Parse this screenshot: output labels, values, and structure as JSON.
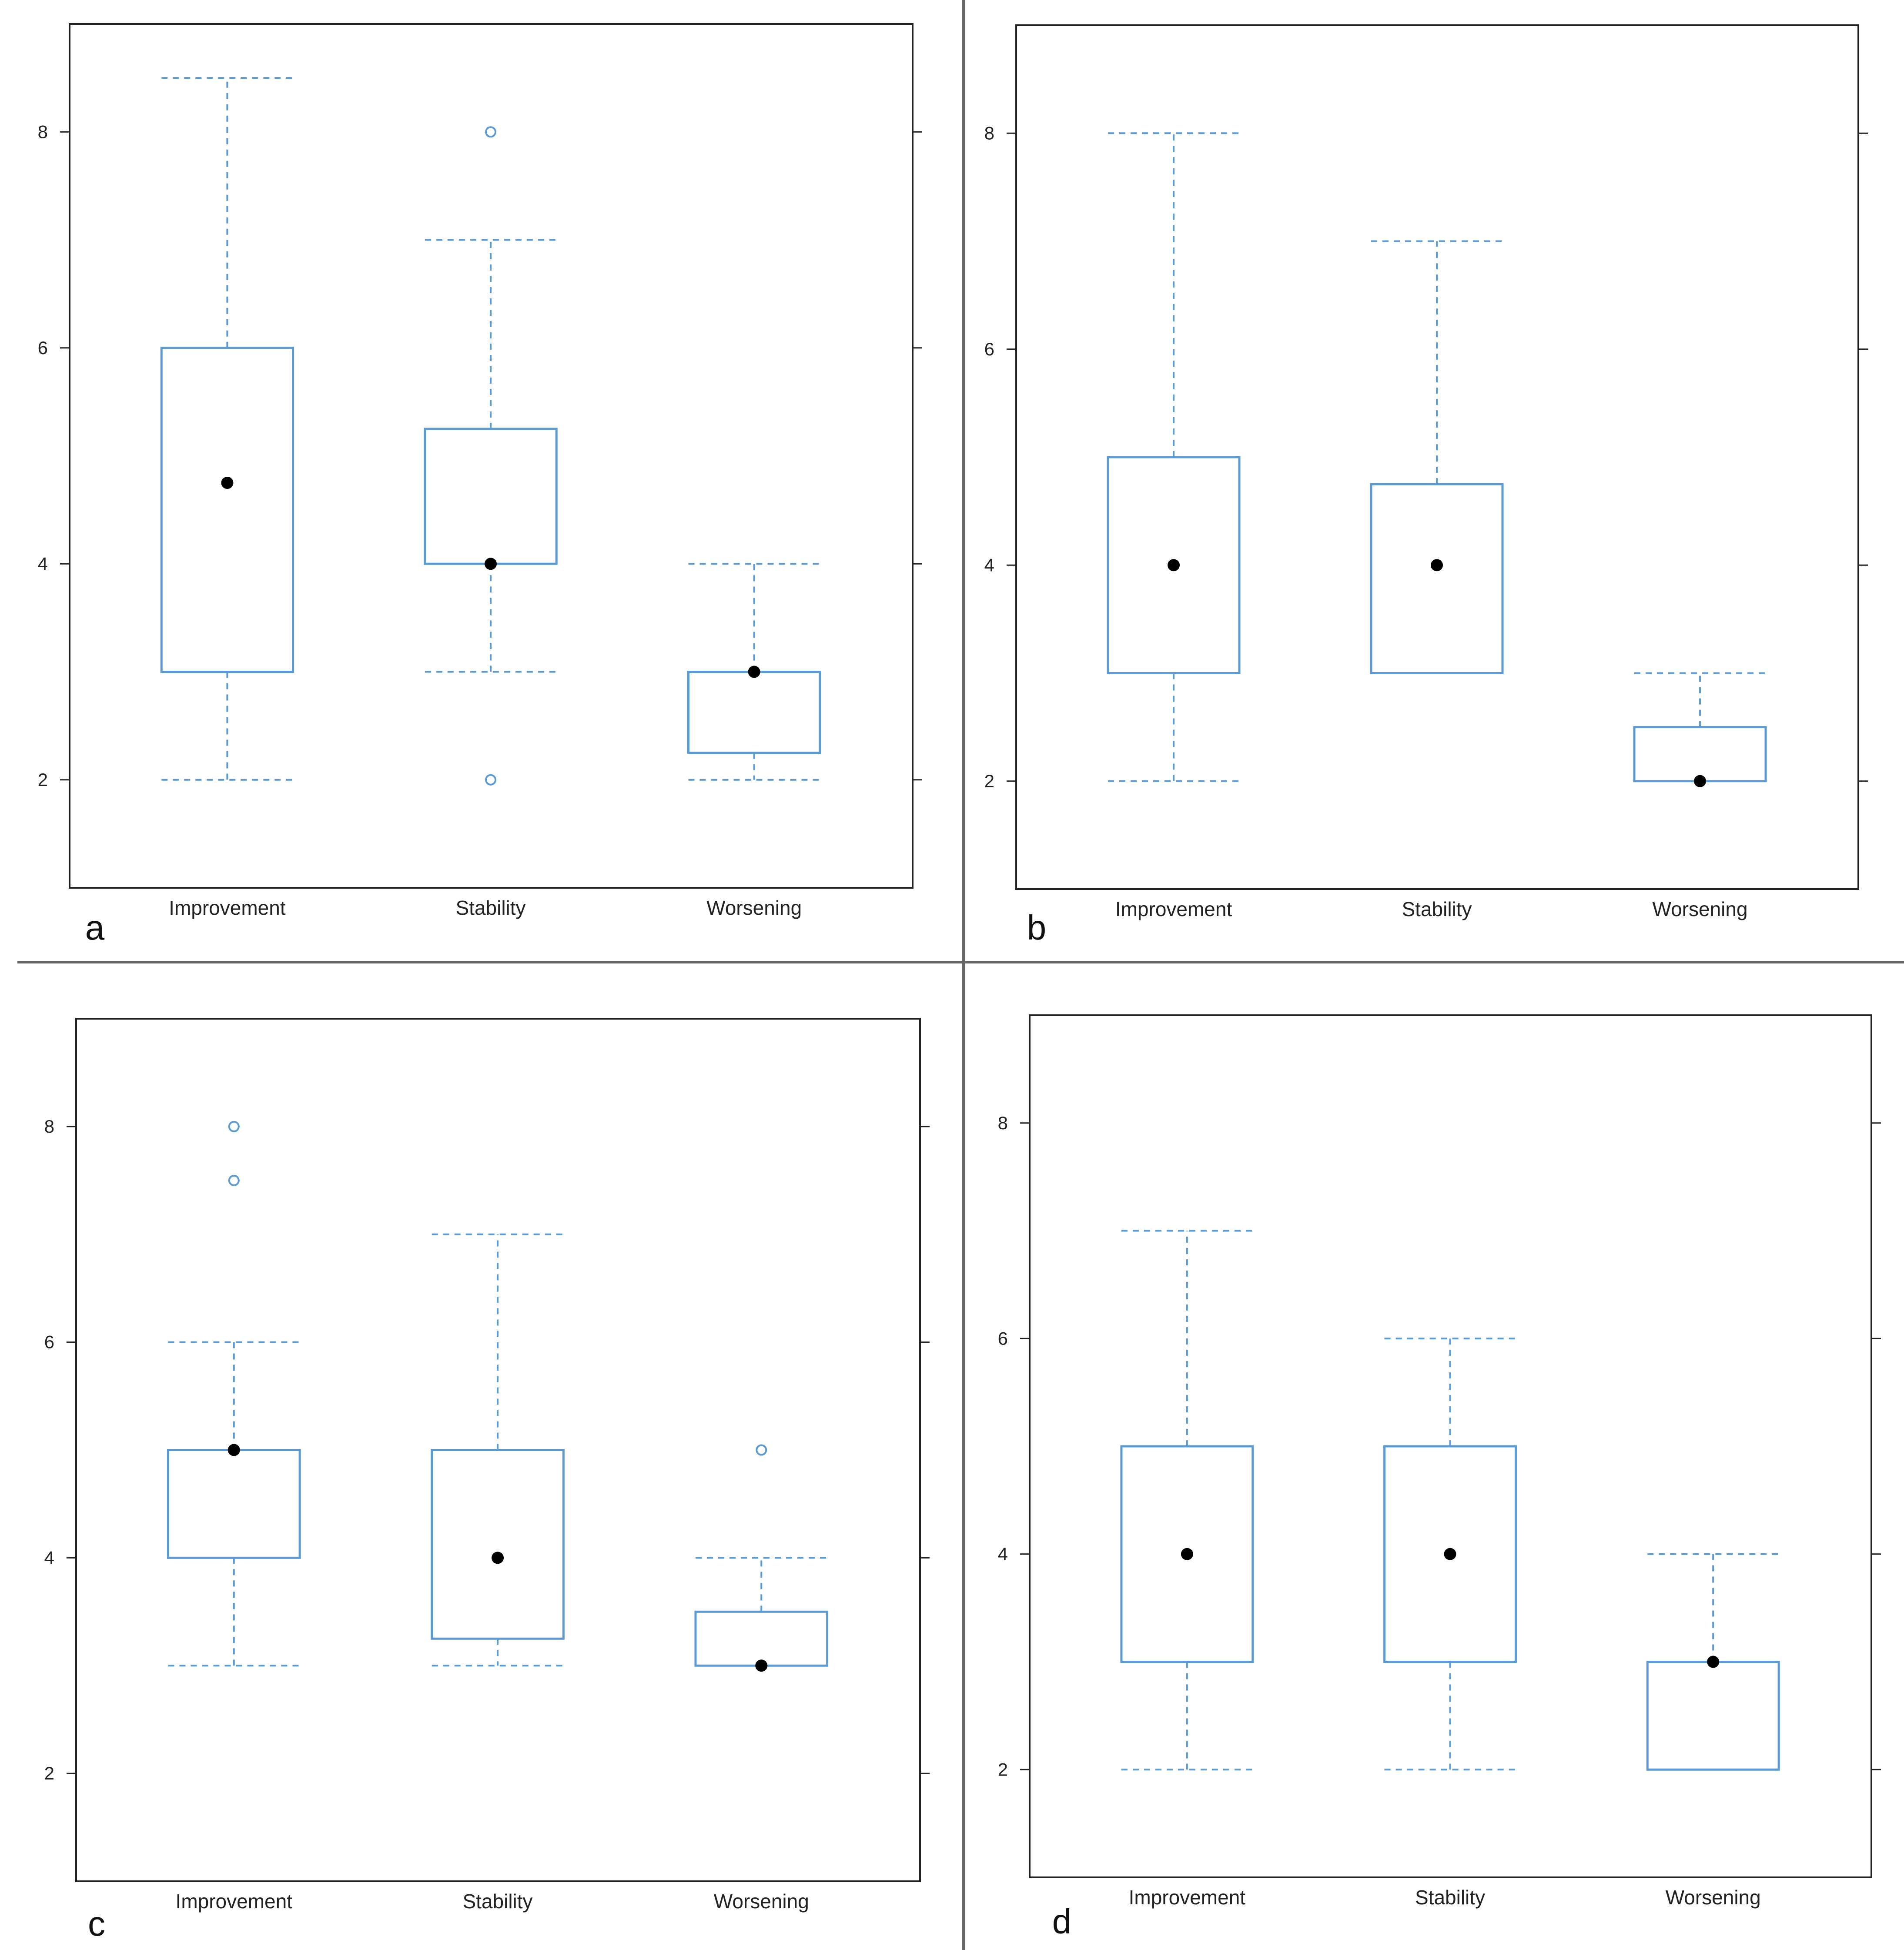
{
  "chart_data": [
    {
      "type": "box",
      "panel_label": "a",
      "categories": [
        "Improvement",
        "Stability",
        "Worsening"
      ],
      "ylim": [
        1,
        9
      ],
      "yticks": [
        2,
        4,
        6,
        8
      ],
      "boxes": [
        {
          "whisker_low": 2,
          "q1": 3,
          "median": 4.75,
          "q3": 6,
          "whisker_high": 8.5,
          "outliers": []
        },
        {
          "whisker_low": 3,
          "q1": 4,
          "median": 4,
          "q3": 5.25,
          "whisker_high": 7,
          "outliers": [
            2,
            8
          ]
        },
        {
          "whisker_low": 2,
          "q1": 2.25,
          "median": 3,
          "q3": 3,
          "whisker_high": 4,
          "outliers": []
        }
      ]
    },
    {
      "type": "box",
      "panel_label": "b",
      "categories": [
        "Improvement",
        "Stability",
        "Worsening"
      ],
      "ylim": [
        1,
        9
      ],
      "yticks": [
        2,
        4,
        6,
        8
      ],
      "boxes": [
        {
          "whisker_low": 2,
          "q1": 3,
          "median": 4,
          "q3": 5,
          "whisker_high": 8,
          "outliers": []
        },
        {
          "whisker_low": 3,
          "q1": 3,
          "median": 4,
          "q3": 4.75,
          "whisker_high": 7,
          "outliers": []
        },
        {
          "whisker_low": 2,
          "q1": 2,
          "median": 2,
          "q3": 2.5,
          "whisker_high": 3,
          "outliers": []
        }
      ]
    },
    {
      "type": "box",
      "panel_label": "c",
      "categories": [
        "Improvement",
        "Stability",
        "Worsening"
      ],
      "ylim": [
        1,
        9
      ],
      "yticks": [
        2,
        4,
        6,
        8
      ],
      "boxes": [
        {
          "whisker_low": 3,
          "q1": 4,
          "median": 5,
          "q3": 5,
          "whisker_high": 6,
          "outliers": [
            7.5,
            8
          ]
        },
        {
          "whisker_low": 3,
          "q1": 3.25,
          "median": 4,
          "q3": 5,
          "whisker_high": 7,
          "outliers": []
        },
        {
          "whisker_low": 3,
          "q1": 3,
          "median": 3,
          "q3": 3.5,
          "whisker_high": 4,
          "outliers": [
            5
          ]
        }
      ]
    },
    {
      "type": "box",
      "panel_label": "d",
      "categories": [
        "Improvement",
        "Stability",
        "Worsening"
      ],
      "ylim": [
        1,
        9
      ],
      "yticks": [
        2,
        4,
        6,
        8
      ],
      "boxes": [
        {
          "whisker_low": 2,
          "q1": 3,
          "median": 4,
          "q3": 5,
          "whisker_high": 7,
          "outliers": []
        },
        {
          "whisker_low": 2,
          "q1": 3,
          "median": 4,
          "q3": 5,
          "whisker_high": 6,
          "outliers": []
        },
        {
          "whisker_low": 2,
          "q1": 2,
          "median": 3,
          "q3": 3,
          "whisker_high": 4,
          "outliers": []
        }
      ]
    }
  ],
  "colors": {
    "box": "#5b9bd5",
    "whisker": "#5b9bd5",
    "median_dot": "#000000",
    "frame": "#222222",
    "divider": "#666666"
  }
}
